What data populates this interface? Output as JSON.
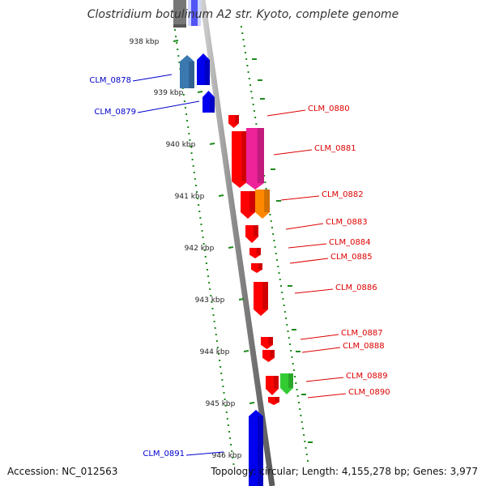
{
  "title": "Clostridium botulinum A2 str. Kyoto, complete genome",
  "footer": {
    "accession": "Accession: NC_012563",
    "summary": "Topology: circular; Length: 4,155,278 bp; Genes: 3,977"
  },
  "colors": {
    "backbone": "#8c8c8c",
    "tick_dots": "#1f8a1f",
    "forward_label": "#0000cc",
    "reverse_label": "#dd0000",
    "blue": "#0000ee",
    "steel_blue": "#3a78b0",
    "red": "#ff0000",
    "magenta": "#ee2299",
    "orange": "#ff8800",
    "green": "#33cc33",
    "gray": "#777777",
    "light_blue": "#ccd4ff"
  },
  "ruler": {
    "ticks": [
      "938 kbp",
      "939 kbp",
      "940 kbp",
      "941 kbp",
      "942 kbp",
      "943 kbp",
      "944 kbp",
      "945 kbp",
      "946 kbp"
    ]
  },
  "genes": {
    "forward": [
      {
        "label": "CLM_0878",
        "color": "steel_blue"
      },
      {
        "label": "CLM_0879",
        "color": "blue"
      },
      {
        "label": "CLM_0891",
        "color": "blue"
      }
    ],
    "reverse": [
      {
        "label": "CLM_0880",
        "color": "red"
      },
      {
        "label": "CLM_0881",
        "color": "magenta"
      },
      {
        "label": "CLM_0882",
        "color": "orange"
      },
      {
        "label": "CLM_0883",
        "color": "red"
      },
      {
        "label": "CLM_0884",
        "color": "red"
      },
      {
        "label": "CLM_0885",
        "color": "red"
      },
      {
        "label": "CLM_0886",
        "color": "red"
      },
      {
        "label": "CLM_0887",
        "color": "red"
      },
      {
        "label": "CLM_0888",
        "color": "red"
      },
      {
        "label": "CLM_0889",
        "color": "green"
      },
      {
        "label": "CLM_0890",
        "color": "red"
      }
    ]
  }
}
